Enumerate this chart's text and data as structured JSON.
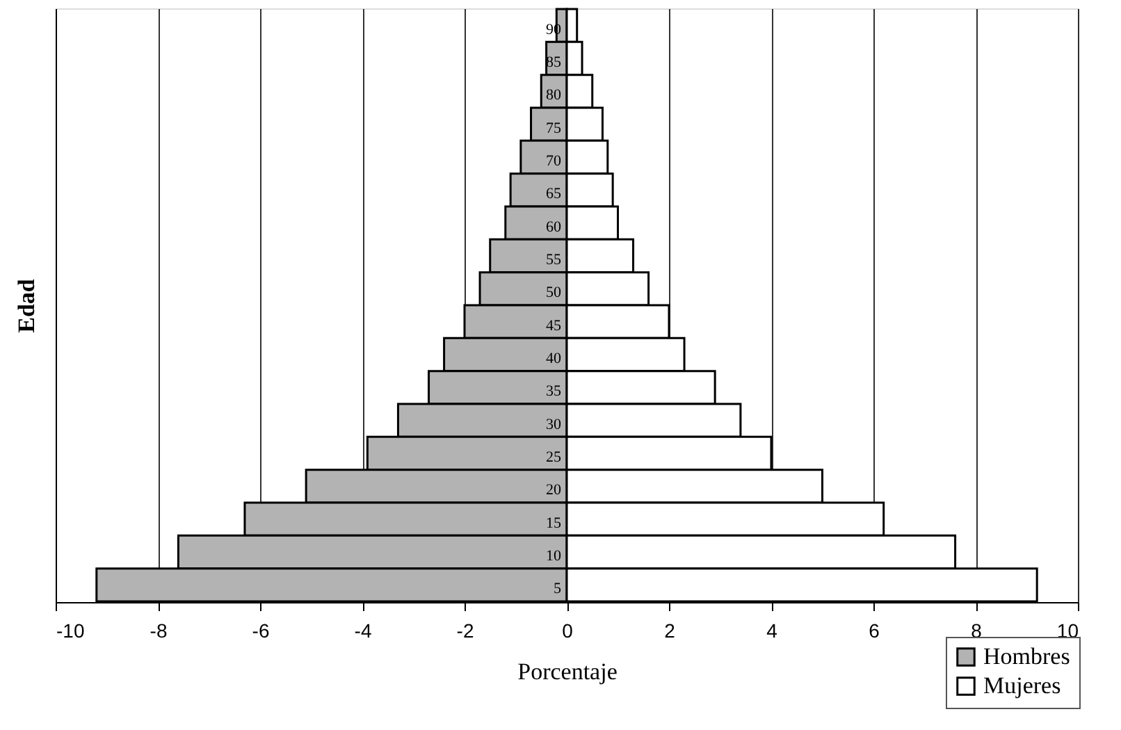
{
  "chart_data": {
    "type": "bar",
    "orientation": "horizontal",
    "xlabel": "Porcentaje",
    "ylabel": "Edad",
    "categories": [
      "90",
      "85",
      "80",
      "75",
      "70",
      "65",
      "60",
      "55",
      "50",
      "45",
      "40",
      "35",
      "30",
      "25",
      "20",
      "15",
      "10",
      "5"
    ],
    "series": [
      {
        "name": "Hombres",
        "color": "#b3b3b3",
        "values": [
          -0.2,
          -0.4,
          -0.5,
          -0.7,
          -0.9,
          -1.1,
          -1.2,
          -1.5,
          -1.7,
          -2.0,
          -2.4,
          -2.7,
          -3.3,
          -3.9,
          -5.1,
          -6.3,
          -7.6,
          -9.2
        ]
      },
      {
        "name": "Mujeres",
        "color": "#ffffff",
        "values": [
          0.2,
          0.3,
          0.5,
          0.7,
          0.8,
          0.9,
          1.0,
          1.3,
          1.6,
          2.0,
          2.3,
          2.9,
          3.4,
          4.0,
          5.0,
          6.2,
          7.6,
          9.2
        ]
      }
    ],
    "stacked": true,
    "xlim": [
      -10,
      10
    ],
    "xticks": [
      -10,
      -8,
      -6,
      -4,
      -2,
      0,
      2,
      4,
      6,
      8,
      10
    ],
    "grid": "x",
    "legend": "bottom right"
  }
}
